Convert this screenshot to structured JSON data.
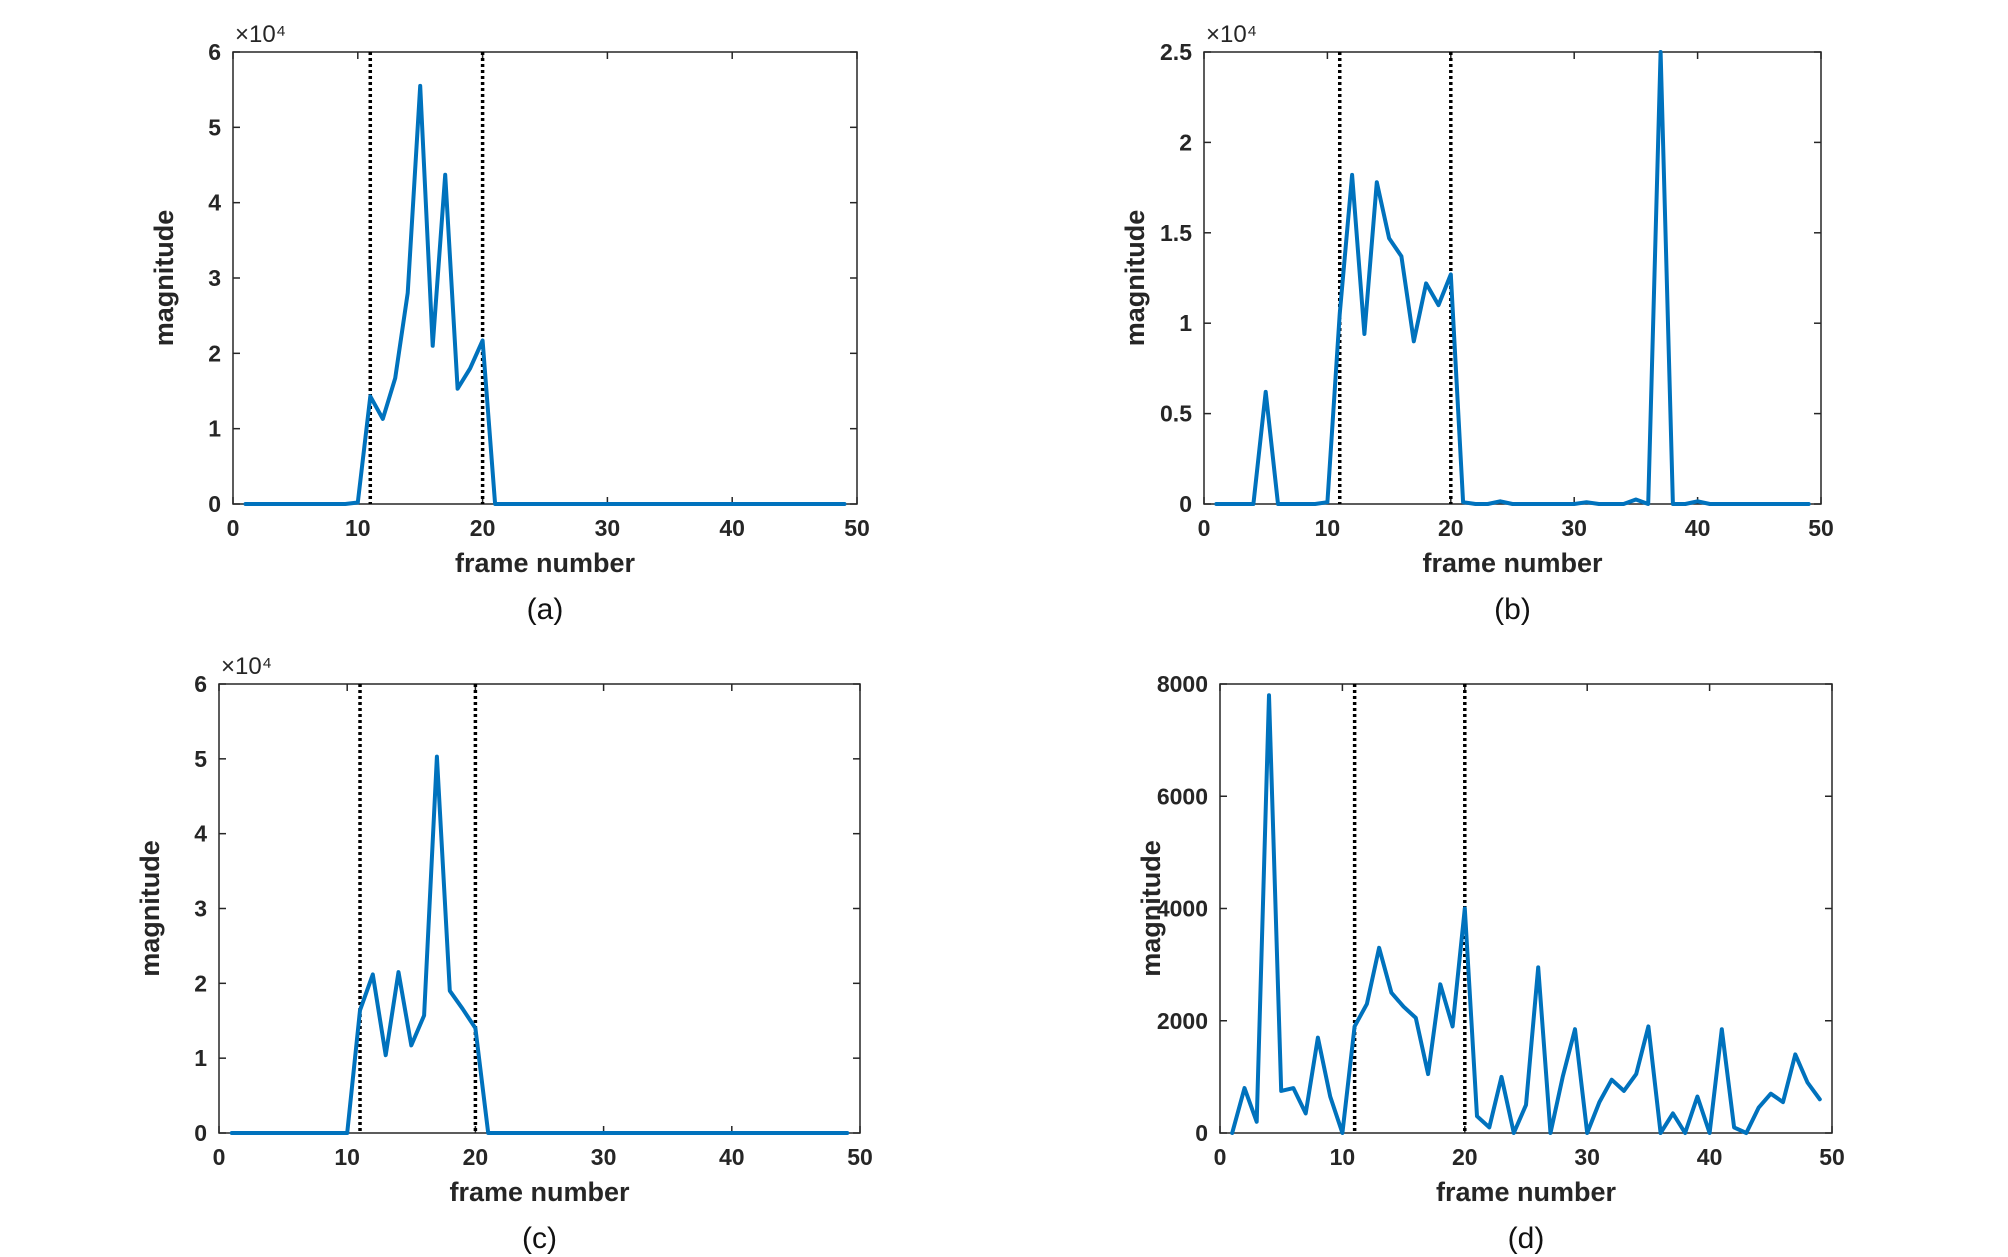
{
  "chart_data": [
    {
      "type": "line",
      "caption": "(a)",
      "xlabel": "frame number",
      "ylabel": "magnitude",
      "exponent_label": "×10⁴",
      "xlim": [
        0,
        50
      ],
      "ylim": [
        0,
        60000
      ],
      "xticks": [
        0,
        10,
        20,
        30,
        40,
        50
      ],
      "xtick_labels": [
        "0",
        "10",
        "20",
        "30",
        "40",
        "50"
      ],
      "yticks": [
        0,
        10000,
        20000,
        30000,
        40000,
        50000,
        60000
      ],
      "ytick_labels": [
        "0",
        "1",
        "2",
        "3",
        "4",
        "5",
        "6"
      ],
      "vlines": [
        11,
        20
      ],
      "line_color": "#0072BD",
      "vline_color": "#000000",
      "x": [
        1,
        2,
        3,
        4,
        5,
        6,
        7,
        8,
        9,
        10,
        11,
        12,
        13,
        14,
        15,
        16,
        17,
        18,
        19,
        20,
        21,
        22,
        23,
        24,
        25,
        26,
        27,
        28,
        29,
        30,
        31,
        32,
        33,
        34,
        35,
        36,
        37,
        38,
        39,
        40,
        41,
        42,
        43,
        44,
        45,
        46,
        47,
        48,
        49
      ],
      "values": [
        0,
        0,
        0,
        0,
        0,
        0,
        0,
        0,
        0,
        200,
        14300,
        11300,
        16700,
        28000,
        55500,
        21000,
        43700,
        15300,
        18000,
        21700,
        0,
        0,
        0,
        0,
        0,
        0,
        0,
        0,
        0,
        0,
        0,
        0,
        0,
        0,
        0,
        0,
        0,
        0,
        0,
        0,
        0,
        0,
        0,
        0,
        0,
        0,
        0,
        0,
        0
      ]
    },
    {
      "type": "line",
      "caption": "(b)",
      "xlabel": "frame number",
      "ylabel": "magnitude",
      "exponent_label": "×10⁴",
      "xlim": [
        0,
        50
      ],
      "ylim": [
        0,
        25000
      ],
      "xticks": [
        0,
        10,
        20,
        30,
        40,
        50
      ],
      "xtick_labels": [
        "0",
        "10",
        "20",
        "30",
        "40",
        "50"
      ],
      "yticks": [
        0,
        5000,
        10000,
        15000,
        20000,
        25000
      ],
      "ytick_labels": [
        "0",
        "0.5",
        "1",
        "1.5",
        "2",
        "2.5"
      ],
      "vlines": [
        11,
        20
      ],
      "line_color": "#0072BD",
      "vline_color": "#000000",
      "x": [
        1,
        2,
        3,
        4,
        5,
        6,
        7,
        8,
        9,
        10,
        11,
        12,
        13,
        14,
        15,
        16,
        17,
        18,
        19,
        20,
        21,
        22,
        23,
        24,
        25,
        26,
        27,
        28,
        29,
        30,
        31,
        32,
        33,
        34,
        35,
        36,
        37,
        38,
        39,
        40,
        41,
        42,
        43,
        44,
        45,
        46,
        47,
        48,
        49
      ],
      "values": [
        0,
        0,
        0,
        0,
        6200,
        0,
        0,
        0,
        0,
        100,
        10500,
        18200,
        9400,
        17800,
        14700,
        13700,
        9000,
        12200,
        11000,
        12700,
        100,
        0,
        0,
        150,
        0,
        0,
        0,
        0,
        0,
        0,
        100,
        0,
        0,
        0,
        250,
        0,
        25000,
        0,
        0,
        150,
        0,
        0,
        0,
        0,
        0,
        0,
        0,
        0,
        0
      ]
    },
    {
      "type": "line",
      "caption": "(c)",
      "xlabel": "frame number",
      "ylabel": "magnitude",
      "exponent_label": "×10⁴",
      "xlim": [
        0,
        50
      ],
      "ylim": [
        0,
        60000
      ],
      "xticks": [
        0,
        10,
        20,
        30,
        40,
        50
      ],
      "xtick_labels": [
        "0",
        "10",
        "20",
        "30",
        "40",
        "50"
      ],
      "yticks": [
        0,
        10000,
        20000,
        30000,
        40000,
        50000,
        60000
      ],
      "ytick_labels": [
        "0",
        "1",
        "2",
        "3",
        "4",
        "5",
        "6"
      ],
      "vlines": [
        11,
        20
      ],
      "line_color": "#0072BD",
      "vline_color": "#000000",
      "x": [
        1,
        2,
        3,
        4,
        5,
        6,
        7,
        8,
        9,
        10,
        11,
        12,
        13,
        14,
        15,
        16,
        17,
        18,
        19,
        20,
        21,
        22,
        23,
        24,
        25,
        26,
        27,
        28,
        29,
        30,
        31,
        32,
        33,
        34,
        35,
        36,
        37,
        38,
        39,
        40,
        41,
        42,
        43,
        44,
        45,
        46,
        47,
        48,
        49
      ],
      "values": [
        0,
        0,
        0,
        0,
        0,
        0,
        0,
        0,
        0,
        0,
        16400,
        21200,
        10400,
        21500,
        11700,
        15700,
        50300,
        19000,
        16600,
        14000,
        0,
        0,
        0,
        0,
        0,
        0,
        0,
        0,
        0,
        0,
        0,
        0,
        0,
        0,
        0,
        0,
        0,
        0,
        0,
        0,
        0,
        0,
        0,
        0,
        0,
        0,
        0,
        0,
        0
      ]
    },
    {
      "type": "line",
      "caption": "(d)",
      "xlabel": "frame number",
      "ylabel": "magnitude",
      "exponent_label": "",
      "xlim": [
        0,
        50
      ],
      "ylim": [
        0,
        8000
      ],
      "xticks": [
        0,
        10,
        20,
        30,
        40,
        50
      ],
      "xtick_labels": [
        "0",
        "10",
        "20",
        "30",
        "40",
        "50"
      ],
      "yticks": [
        0,
        2000,
        4000,
        6000,
        8000
      ],
      "ytick_labels": [
        "0",
        "2000",
        "4000",
        "6000",
        "8000"
      ],
      "vlines": [
        11,
        20
      ],
      "line_color": "#0072BD",
      "vline_color": "#000000",
      "x": [
        1,
        2,
        3,
        4,
        5,
        6,
        7,
        8,
        9,
        10,
        11,
        12,
        13,
        14,
        15,
        16,
        17,
        18,
        19,
        20,
        21,
        22,
        23,
        24,
        25,
        26,
        27,
        28,
        29,
        30,
        31,
        32,
        33,
        34,
        35,
        36,
        37,
        38,
        39,
        40,
        41,
        42,
        43,
        44,
        45,
        46,
        47,
        48,
        49
      ],
      "values": [
        0,
        800,
        200,
        7800,
        750,
        800,
        350,
        1700,
        650,
        0,
        1900,
        2300,
        3300,
        2500,
        2250,
        2050,
        1050,
        2650,
        1900,
        4000,
        300,
        100,
        1000,
        0,
        500,
        2950,
        0,
        1000,
        1850,
        0,
        550,
        950,
        750,
        1050,
        1900,
        0,
        350,
        0,
        650,
        0,
        1850,
        100,
        0,
        450,
        700,
        550,
        1400,
        900,
        600
      ]
    }
  ]
}
